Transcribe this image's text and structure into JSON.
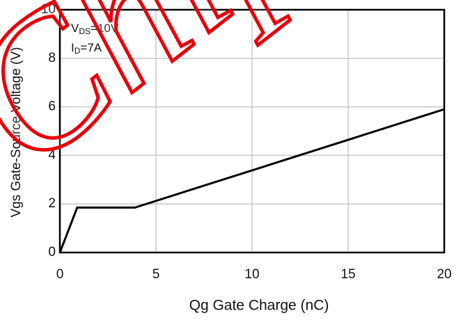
{
  "chart_data": {
    "type": "line",
    "x_label": "Qg Gate Charge (nC)",
    "y_label": "Vgs Gate-Source Voltage (V)",
    "annotations": [
      [
        "V",
        "DS",
        "=10V"
      ],
      [
        "I",
        "D",
        "=7A"
      ]
    ],
    "watermark": "Chip",
    "x": [
      0,
      0.9,
      3.9,
      20
    ],
    "series": [
      {
        "color": "#000000",
        "values": [
          0,
          1.85,
          1.85,
          5.9
        ]
      }
    ],
    "xlim": [
      0,
      20
    ],
    "xticks": [
      0,
      5,
      10,
      15,
      20
    ],
    "ylim": [
      0,
      10
    ],
    "yticks": [
      0,
      2,
      4,
      6,
      8,
      10
    ],
    "grid": true
  }
}
